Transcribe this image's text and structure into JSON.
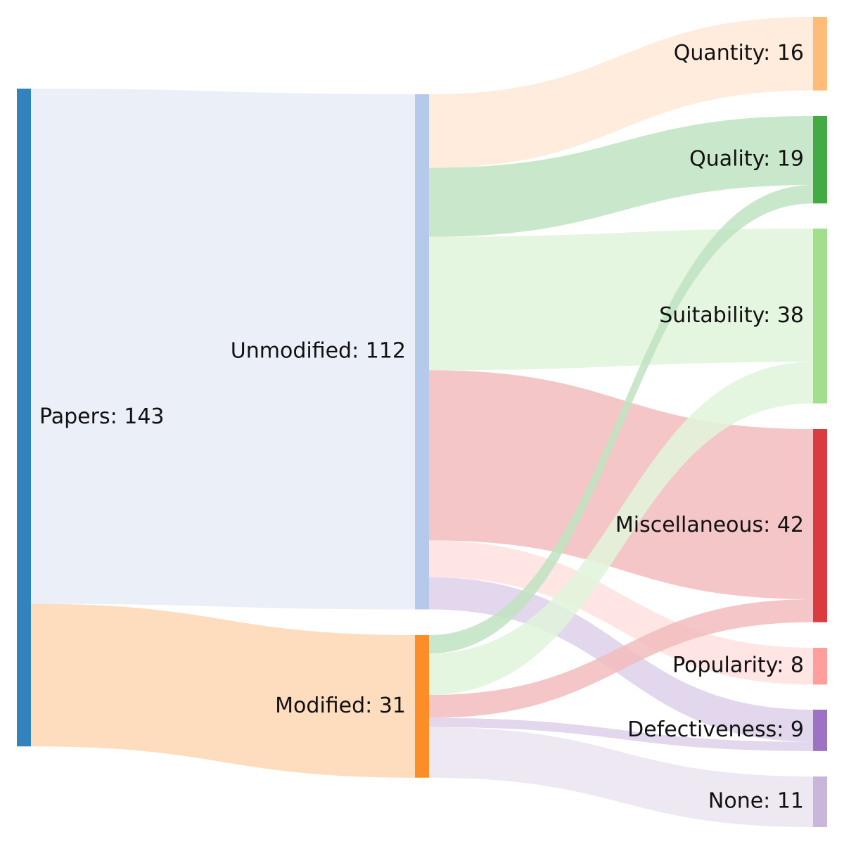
{
  "diagram": {
    "type": "sankey",
    "nodes": [
      {
        "id": "papers",
        "label": "Papers: 143",
        "value": 143,
        "color": "#3182bd"
      },
      {
        "id": "unmodified",
        "label": "Unmodified: 112",
        "value": 112,
        "color": "#b5c9ea"
      },
      {
        "id": "modified",
        "label": "Modified: 31",
        "value": 31,
        "color": "#fd8d27"
      },
      {
        "id": "quantity",
        "label": "Quantity: 16",
        "value": 16,
        "color": "#ffbb78"
      },
      {
        "id": "quality",
        "label": "Quality: 19",
        "value": 19,
        "color": "#42ab43"
      },
      {
        "id": "suitability",
        "label": "Suitability: 38",
        "value": 38,
        "color": "#a1df8c"
      },
      {
        "id": "miscellaneous",
        "label": "Miscellaneous: 42",
        "value": 42,
        "color": "#db3b3f"
      },
      {
        "id": "popularity",
        "label": "Popularity: 8",
        "value": 8,
        "color": "#ff9e9b"
      },
      {
        "id": "defectiveness",
        "label": "Defectiveness: 9",
        "value": 9,
        "color": "#9e72c3"
      },
      {
        "id": "none",
        "label": "None: 11",
        "value": 11,
        "color": "#c8b6db"
      }
    ],
    "links": [
      {
        "source": "papers",
        "target": "unmodified",
        "value": 112,
        "color": "#e6ecf7"
      },
      {
        "source": "papers",
        "target": "modified",
        "value": 31,
        "color": "#fdd7b3"
      },
      {
        "source": "unmodified",
        "target": "quantity",
        "value": 16,
        "color": "#ffe9d6"
      },
      {
        "source": "unmodified",
        "target": "quality",
        "value": 15,
        "color": "#c0e3c1"
      },
      {
        "source": "unmodified",
        "target": "suitability",
        "value": 29,
        "color": "#e0f4da"
      },
      {
        "source": "unmodified",
        "target": "miscellaneous",
        "value": 37,
        "color": "#f2bcbd"
      },
      {
        "source": "unmodified",
        "target": "popularity",
        "value": 8,
        "color": "#ffe0df"
      },
      {
        "source": "unmodified",
        "target": "defectiveness",
        "value": 7,
        "color": "#ddd0ea"
      },
      {
        "source": "modified",
        "target": "quality",
        "value": 4,
        "color": "#c0e3c1"
      },
      {
        "source": "modified",
        "target": "suitability",
        "value": 9,
        "color": "#e0f4da"
      },
      {
        "source": "modified",
        "target": "miscellaneous",
        "value": 5,
        "color": "#f2bcbd"
      },
      {
        "source": "modified",
        "target": "defectiveness",
        "value": 2,
        "color": "#ddd0ea"
      },
      {
        "source": "modified",
        "target": "none",
        "value": 11,
        "color": "#ebe4f1"
      }
    ]
  }
}
